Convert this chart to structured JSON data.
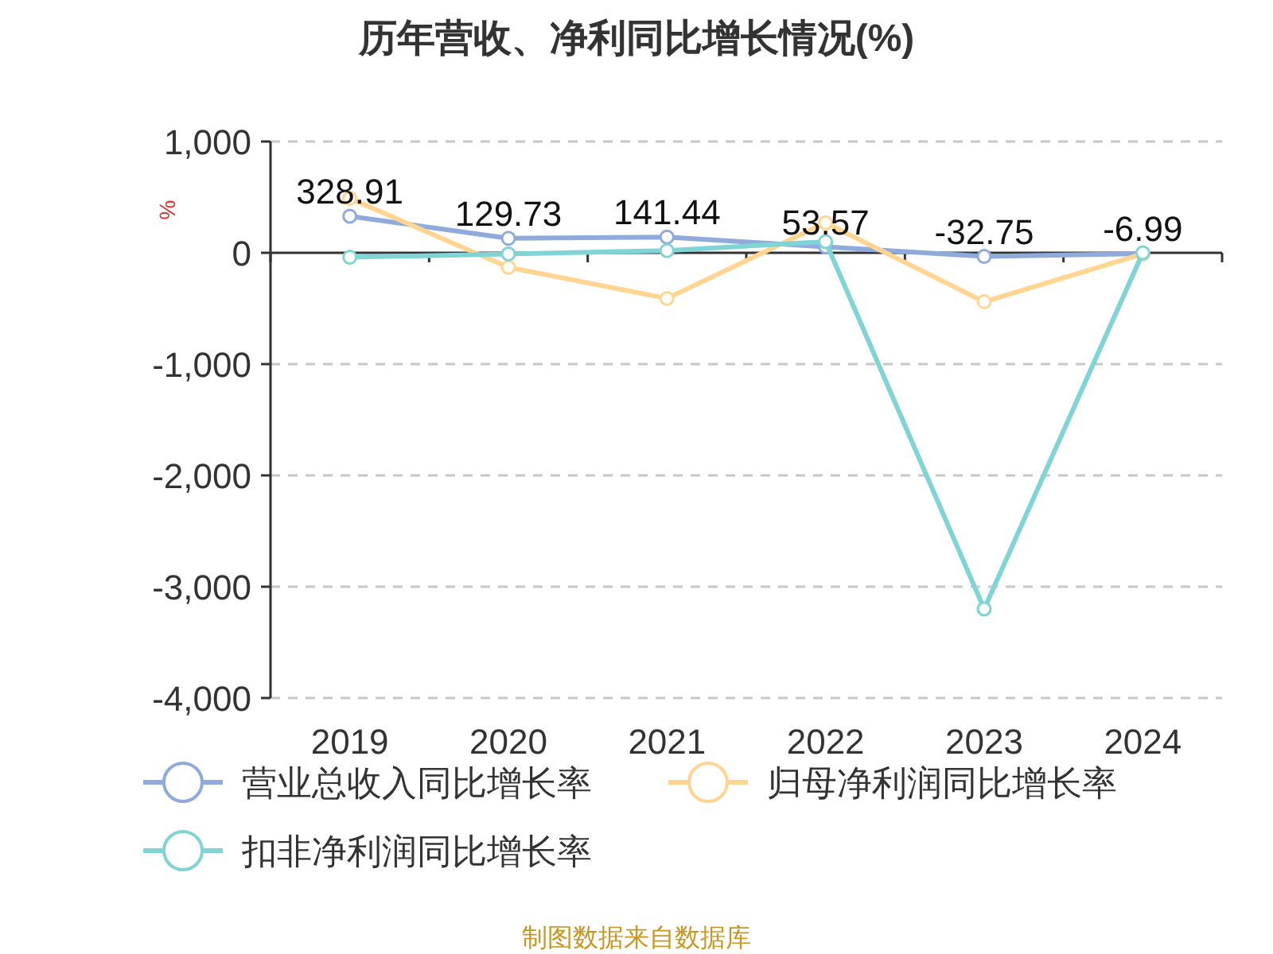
{
  "chart_data": {
    "type": "line",
    "title": "历年营收、净利同比增长情况(%)",
    "ylabel": "%",
    "categories": [
      "2019",
      "2020",
      "2021",
      "2022",
      "2023",
      "2024"
    ],
    "series": [
      {
        "name": "营业总收入同比增长率",
        "color": "#8fabdc",
        "values": [
          328.91,
          129.73,
          141.44,
          53.57,
          -32.75,
          -6.99
        ],
        "value_labels": [
          "328.91",
          "129.73",
          "141.44",
          "53.57",
          "-32.75",
          "-6.99"
        ]
      },
      {
        "name": "归母净利润同比增长率",
        "color": "#ffd591",
        "values": [
          490,
          -130,
          -410,
          270,
          -440,
          -10
        ]
      },
      {
        "name": "扣非净利润同比增长率",
        "color": "#80d4d6",
        "values": [
          -40,
          -10,
          20,
          100,
          -3200,
          0
        ]
      }
    ],
    "ylim": [
      -4000,
      1000
    ],
    "yticks": [
      {
        "value": -4000,
        "label": "-4,000"
      },
      {
        "value": -3000,
        "label": "-3,000"
      },
      {
        "value": -2000,
        "label": "-2,000"
      },
      {
        "value": -1000,
        "label": "-1,000"
      },
      0,
      {
        "value": 1000,
        "label": "1,000"
      }
    ],
    "grid": "y",
    "legend": "bottom",
    "marker": "circle",
    "line_style": "solid",
    "annotations": [
      "制图数据来自数据库"
    ]
  }
}
